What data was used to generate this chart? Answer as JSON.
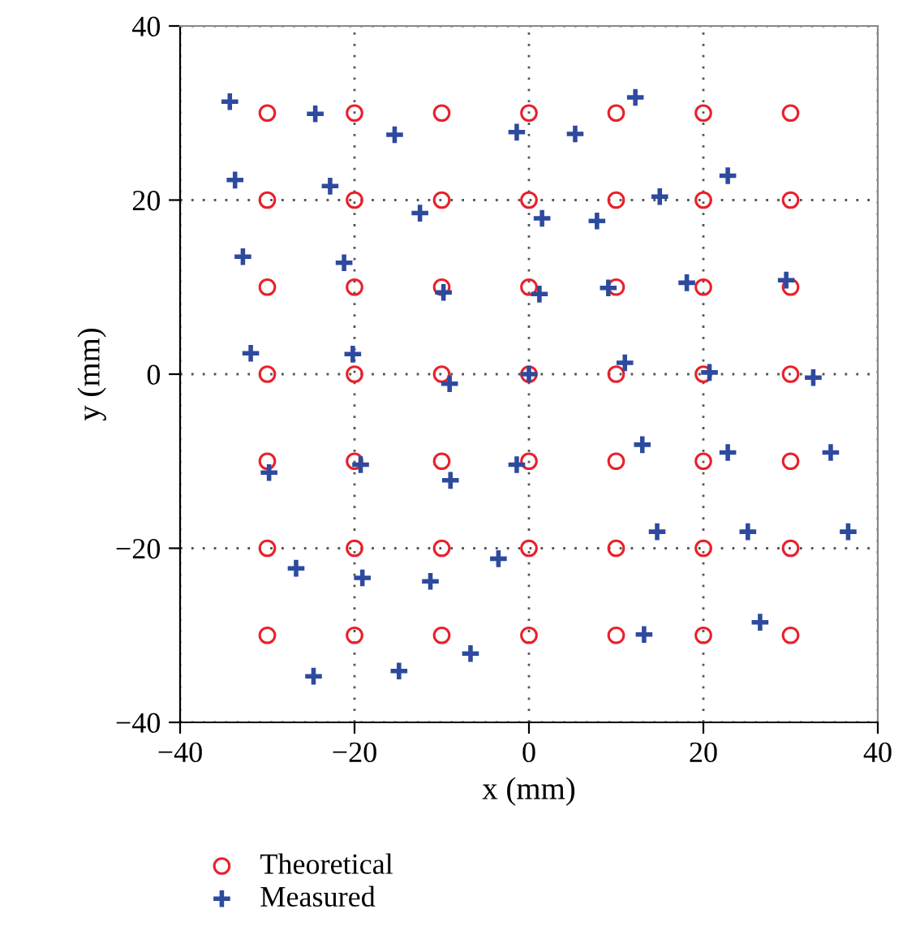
{
  "chart_data": {
    "type": "scatter",
    "xlabel": "x (mm)",
    "ylabel": "y (mm)",
    "xlim": [
      -40,
      40
    ],
    "ylim": [
      -40,
      40
    ],
    "xticks": [
      -40,
      -20,
      0,
      20,
      40
    ],
    "yticks": [
      -40,
      -20,
      0,
      20,
      40
    ],
    "grid": true,
    "legend": "bottom",
    "series": [
      {
        "name": "Theoretical",
        "color": "#e8212b",
        "marker": "circle",
        "x": [
          -30,
          -20,
          -10,
          0,
          10,
          20,
          30,
          -30,
          -20,
          -10,
          0,
          10,
          20,
          30,
          -30,
          -20,
          -10,
          0,
          10,
          20,
          30,
          -30,
          -20,
          -10,
          0,
          10,
          20,
          30,
          -30,
          -20,
          -10,
          0,
          10,
          20,
          30,
          -30,
          -20,
          -10,
          0,
          10,
          20,
          30,
          -30,
          -20,
          -10,
          0,
          10,
          20,
          30
        ],
        "values": [
          30,
          30,
          30,
          30,
          30,
          30,
          30,
          20,
          20,
          20,
          20,
          20,
          20,
          20,
          10,
          10,
          10,
          10,
          10,
          10,
          10,
          0,
          0,
          0,
          0,
          0,
          0,
          0,
          -10,
          -10,
          -10,
          -10,
          -10,
          -10,
          -10,
          -20,
          -20,
          -20,
          -20,
          -20,
          -20,
          -20,
          -30,
          -30,
          -30,
          -30,
          -30,
          -30,
          -30
        ]
      },
      {
        "name": "Measured",
        "color": "#2e4a9e",
        "marker": "cross",
        "x": [
          -34.3,
          -24.5,
          -15.4,
          -1.4,
          -33.7,
          -22.8,
          -12.5,
          -32.8,
          -21.2,
          -9.8,
          -31.9,
          -20.2,
          -9.1,
          0,
          12.2,
          5.3,
          22.8,
          15.0,
          1.5,
          7.8,
          1.2,
          9.1,
          18.1,
          29.5,
          11.0,
          20.7,
          32.6,
          -29.8,
          -19.3,
          -9.0,
          -1.4,
          -26.7,
          -19.1,
          -11.3,
          -3.5,
          -24.7,
          -14.9,
          -6.7,
          13.0,
          22.8,
          34.6,
          14.7,
          25.1,
          36.6,
          13.2,
          26.5
        ],
        "values": [
          31.3,
          29.9,
          27.5,
          27.8,
          22.3,
          21.6,
          18.5,
          13.5,
          12.8,
          9.4,
          2.4,
          2.3,
          -1.1,
          0,
          31.8,
          27.6,
          22.8,
          20.4,
          17.9,
          17.6,
          9.2,
          9.9,
          10.5,
          10.8,
          1.3,
          0.2,
          -0.4,
          -11.3,
          -10.4,
          -12.2,
          -10.4,
          -22.3,
          -23.4,
          -23.8,
          -21.2,
          -34.7,
          -34.1,
          -32.1,
          -8.1,
          -9.0,
          -9.0,
          -18.1,
          -18.1,
          -18.1,
          -29.9,
          -28.5
        ]
      }
    ]
  }
}
